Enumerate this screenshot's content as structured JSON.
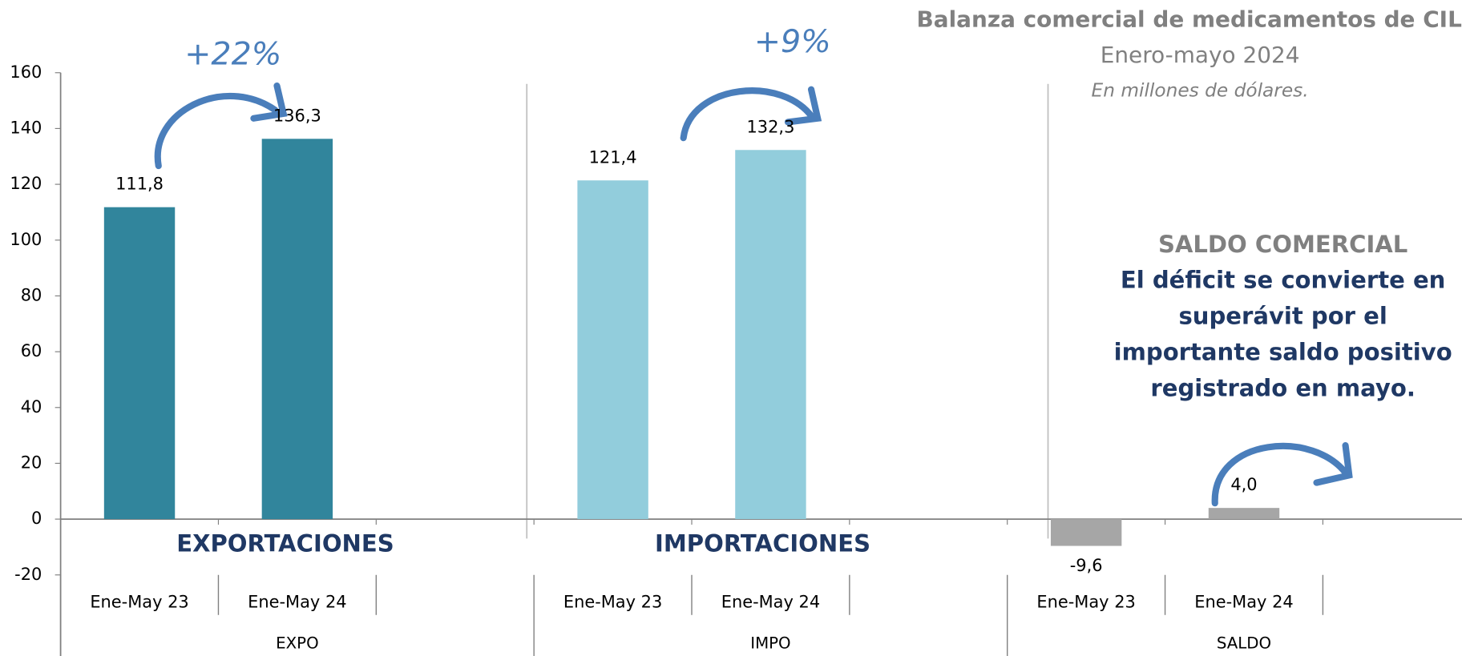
{
  "chart_data": {
    "type": "bar",
    "title": "Balanza comercial de medicamentos de CILFA",
    "subtitle": "Enero-mayo 2024",
    "unit_note": "En millones de dólares.",
    "categories": [
      "Ene-May 23",
      "Ene-May 24",
      "Ene-May 23",
      "Ene-May 24",
      "Ene-May 23",
      "Ene-May 24"
    ],
    "groups": [
      "EXPO",
      "IMPO",
      "SALDO"
    ],
    "values": [
      111.8,
      136.3,
      121.4,
      132.3,
      -9.6,
      4.0
    ],
    "value_labels": [
      "111,8",
      "136,3",
      "121,4",
      "132,3",
      "-9,6",
      "4,0"
    ],
    "colors": [
      "#31859c",
      "#31859c",
      "#92cddc",
      "#92cddc",
      "#a6a6a6",
      "#a6a6a6"
    ],
    "ylim": [
      -20,
      160
    ],
    "yticks": [
      -20,
      0,
      20,
      40,
      60,
      80,
      100,
      120,
      140,
      160
    ],
    "annotations": {
      "expo_change": "+22%",
      "impo_change": "+9%",
      "expo_label": "EXPORTACIONES",
      "impo_label": "IMPORTACIONES",
      "saldo_heading": "SALDO COMERCIAL",
      "saldo_text": [
        "El déficit se convierte en",
        "superávit por el",
        "importante saldo positivo",
        "registrado en mayo."
      ]
    }
  }
}
